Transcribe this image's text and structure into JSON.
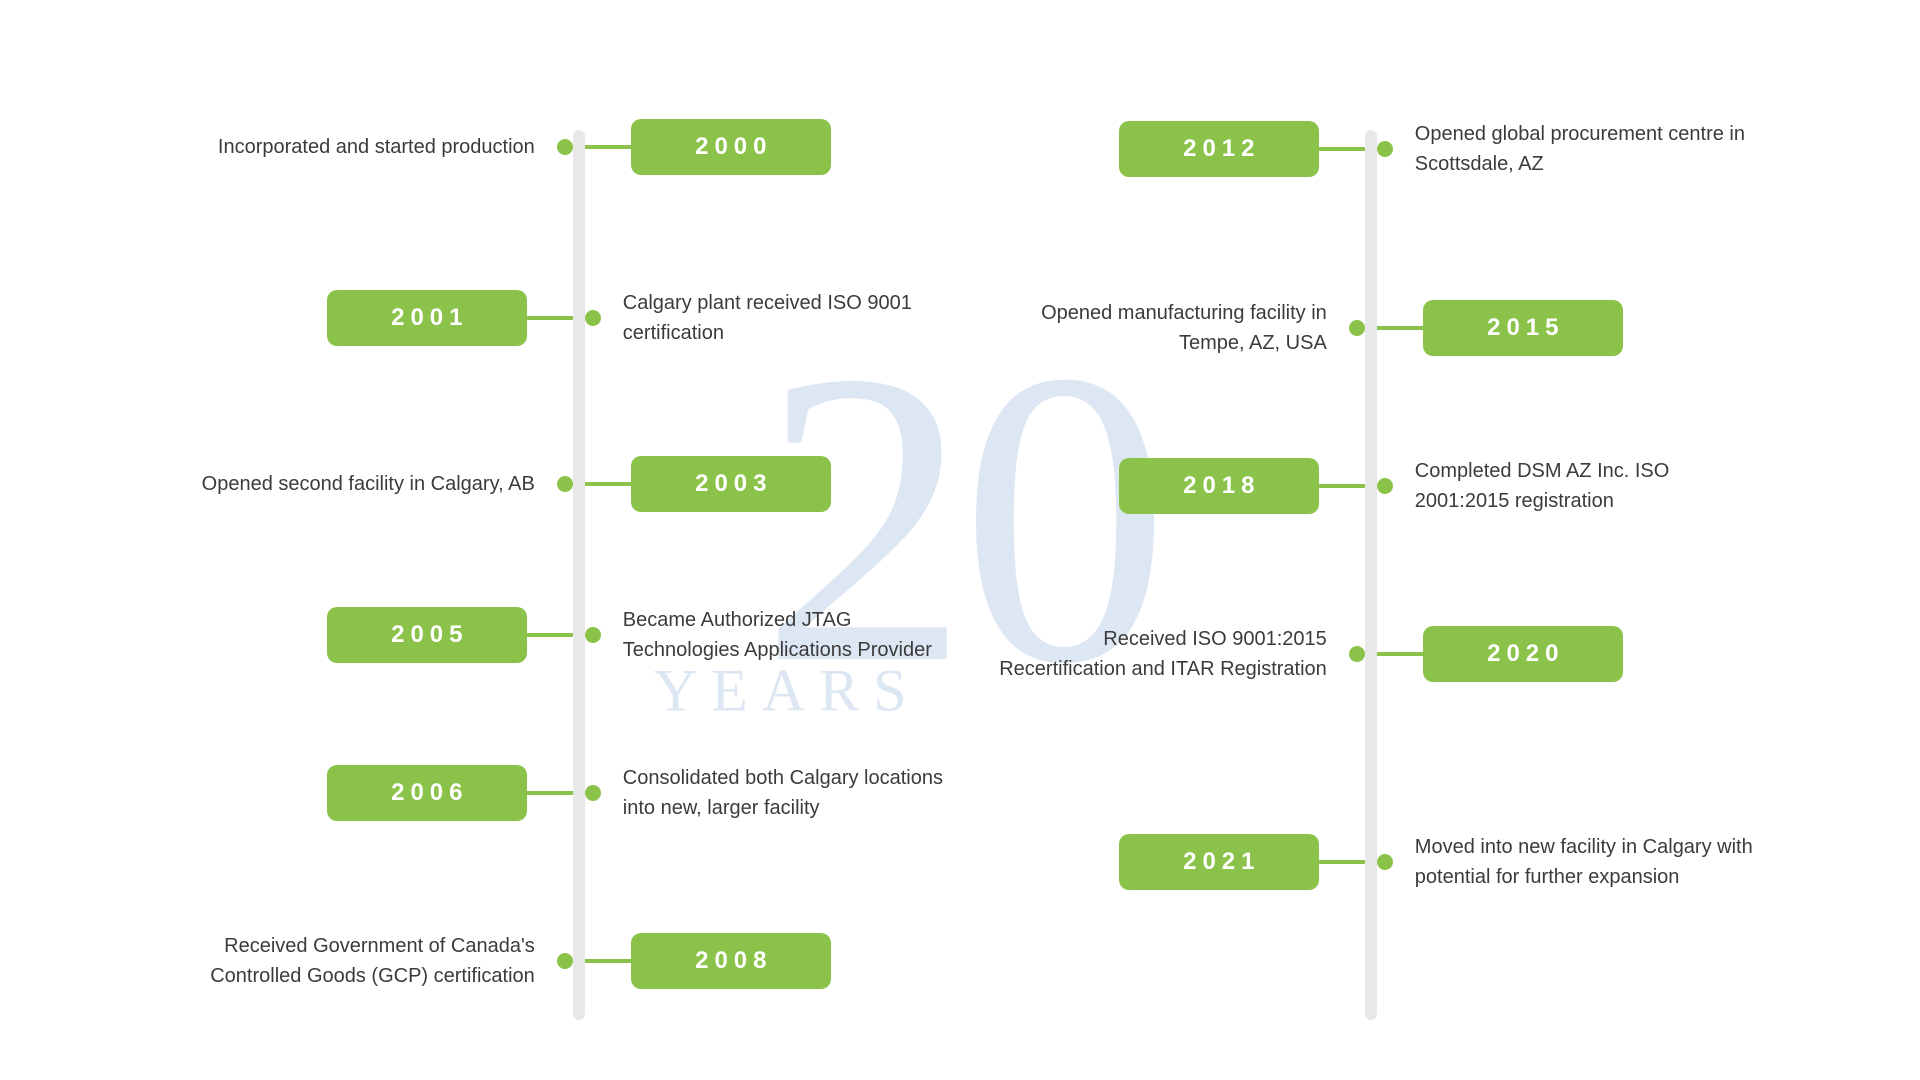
{
  "watermark": {
    "main": "20",
    "sub": "YEARS",
    "color": "#dde7f3"
  },
  "styling": {
    "badge_bg": "#8bc34a",
    "badge_text_color": "#ffffff",
    "badge_fontsize": 24,
    "badge_letter_spacing": 6,
    "badge_radius": 10,
    "axis_color": "#e8e8e8",
    "axis_width": 12,
    "connector_color": "#8bc34a",
    "connector_width": 46,
    "dot_color": "#8bc34a",
    "dot_diameter": 16,
    "desc_color": "#3b3b3b",
    "desc_fontsize": 20,
    "background_color": "#ffffff"
  },
  "columns": [
    {
      "axis_left_pct": 56,
      "events": [
        {
          "year": "2000",
          "desc": "Incorporated and started production",
          "side": "left",
          "top_pct": 6
        },
        {
          "year": "2001",
          "desc": "Calgary plant received ISO 9001 certification",
          "side": "right",
          "top_pct": 23
        },
        {
          "year": "2003",
          "desc": "Opened second facility in Calgary, AB",
          "side": "left",
          "top_pct": 40
        },
        {
          "year": "2005",
          "desc": "Became Authorized JTAG Technologies Applications Provider",
          "side": "right",
          "top_pct": 55
        },
        {
          "year": "2006",
          "desc": "Consolidated both Calgary locations into new, larger facility",
          "side": "right",
          "top_pct": 71
        },
        {
          "year": "2008",
          "desc": "Received Government of Canada's Controlled Goods (GCP) certification",
          "side": "left",
          "top_pct": 88
        }
      ]
    },
    {
      "axis_left_pct": 46,
      "events": [
        {
          "year": "2012",
          "desc": "Opened global procurement centre in Scottsdale, AZ",
          "side": "right",
          "top_pct": 6
        },
        {
          "year": "2015",
          "desc": "Opened manufacturing facility in Tempe, AZ, USA",
          "side": "left",
          "top_pct": 24
        },
        {
          "year": "2018",
          "desc": "Completed DSM AZ Inc. ISO 2001:2015 registration",
          "side": "right",
          "top_pct": 40
        },
        {
          "year": "2020",
          "desc": "Received ISO 9001:2015 Recertification and ITAR Registration",
          "side": "left",
          "top_pct": 57
        },
        {
          "year": "2021",
          "desc": "Moved into new facility in Calgary with potential for further expansion",
          "side": "right",
          "top_pct": 78
        }
      ]
    }
  ]
}
